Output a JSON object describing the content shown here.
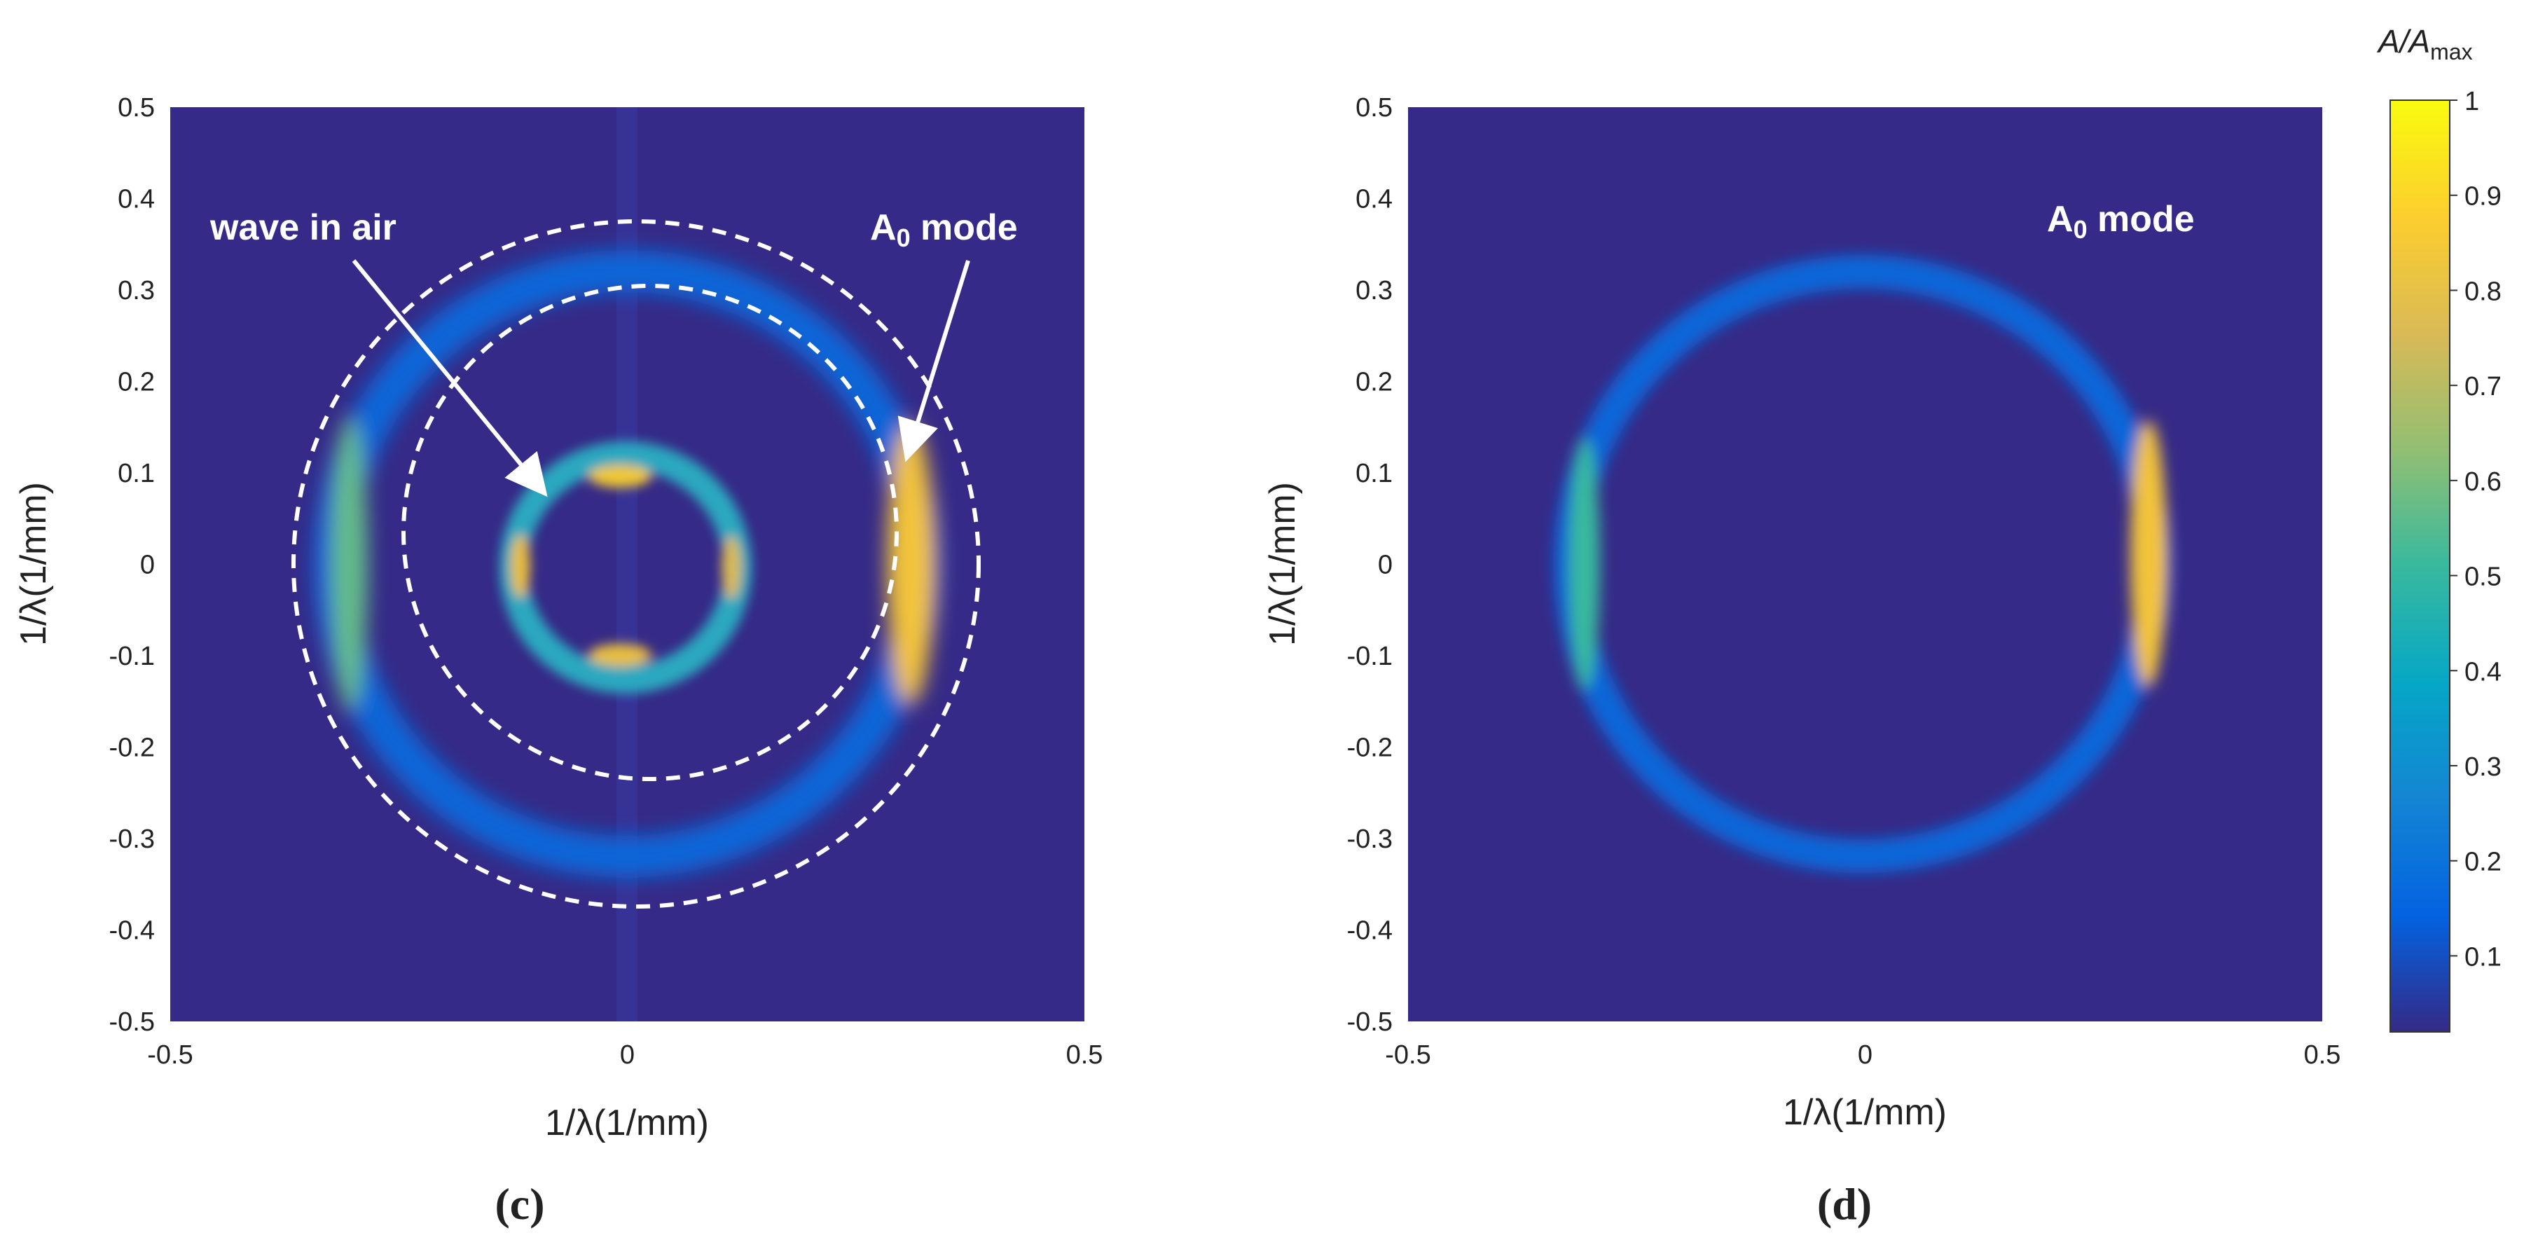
{
  "chart_data": [
    {
      "type": "heatmap",
      "panel_label": "(c)",
      "xlabel": "1/λ(1/mm)",
      "ylabel": "1/λ(1/mm)",
      "xlim": [
        -0.5,
        0.5
      ],
      "ylim": [
        -0.5,
        0.5
      ],
      "x_ticks": [
        "-0.5",
        "0",
        "0.5"
      ],
      "y_ticks": [
        "0.5",
        "0.4",
        "0.3",
        "0.2",
        "0.1",
        "0",
        "-0.1",
        "-0.2",
        "-0.3",
        "-0.4",
        "-0.5"
      ],
      "features": {
        "outer_ring_radius": 0.32,
        "outer_ring_peak_x": [
          -0.31,
          0.31
        ],
        "inner_ring_radius": 0.12,
        "dashed_circles": [
          {
            "cx": 0.01,
            "cy": 0.0,
            "r": 0.375
          },
          {
            "cx": 0.025,
            "cy": 0.035,
            "r": 0.27
          }
        ]
      },
      "annotations": [
        {
          "text": "wave in air",
          "text_at": [
            -0.33,
            0.37
          ],
          "arrow_to": [
            -0.1,
            0.08
          ]
        },
        {
          "text_main": "A",
          "text_sub": "0",
          "text_tail": " mode",
          "text_at": [
            0.27,
            0.37
          ],
          "arrow_to": [
            0.3,
            0.12
          ]
        }
      ]
    },
    {
      "type": "heatmap",
      "panel_label": "(d)",
      "xlabel": "1/λ(1/mm)",
      "ylabel": "1/λ(1/mm)",
      "xlim": [
        -0.5,
        0.5
      ],
      "ylim": [
        -0.5,
        0.5
      ],
      "x_ticks": [
        "-0.5",
        "0",
        "0.5"
      ],
      "y_ticks": [
        "0.5",
        "0.4",
        "0.3",
        "0.2",
        "0.1",
        "0",
        "-0.1",
        "-0.2",
        "-0.3",
        "-0.4",
        "-0.5"
      ],
      "features": {
        "ring_radius": 0.32,
        "ring_peak_x": [
          -0.31,
          0.31
        ]
      },
      "annotations": [
        {
          "text_main": "A",
          "text_sub": "0",
          "text_tail": " mode",
          "text_at": [
            0.2,
            0.37
          ]
        }
      ]
    }
  ],
  "colorbar": {
    "title_main": "A/A",
    "title_sub": "max",
    "range": [
      0.02,
      1
    ],
    "ticks": [
      "1",
      "0.9",
      "0.8",
      "0.7",
      "0.6",
      "0.5",
      "0.4",
      "0.3",
      "0.2",
      "0.1"
    ],
    "colormap": "parula",
    "colors": [
      "#352a87",
      "#0363e1",
      "#1485d4",
      "#06a7c6",
      "#38b99e",
      "#92bf73",
      "#d9ba56",
      "#fcce2e",
      "#f9fb0e"
    ]
  }
}
